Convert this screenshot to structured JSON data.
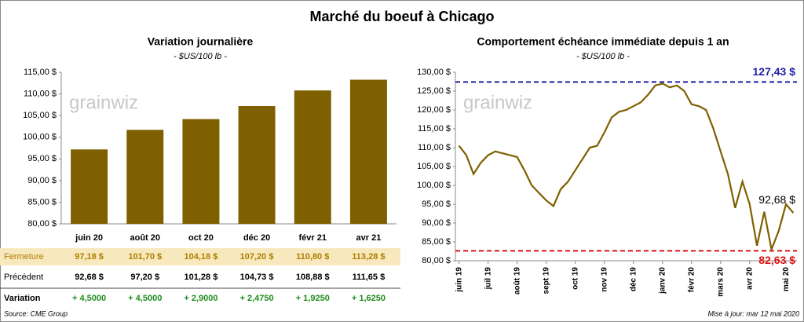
{
  "title": "Marché du boeuf à Chicago",
  "watermark": "grainwiz",
  "chart_data": [
    {
      "type": "bar",
      "title": "Variation journalière",
      "subtitle": "- $US/100 lb -",
      "categories": [
        "juin 20",
        "août 20",
        "oct 20",
        "déc 20",
        "févr 21",
        "avr 21"
      ],
      "values": [
        97.18,
        101.7,
        104.18,
        107.2,
        110.8,
        113.28
      ],
      "color": "#7f6000",
      "ylim": [
        80,
        115
      ],
      "yticks": [
        {
          "value": 80,
          "label": "80,00 $"
        },
        {
          "value": 85,
          "label": "85,00 $"
        },
        {
          "value": 90,
          "label": "90,00 $"
        },
        {
          "value": 95,
          "label": "95,00 $"
        },
        {
          "value": 100,
          "label": "100,00 $"
        },
        {
          "value": 105,
          "label": "105,00 $"
        },
        {
          "value": 110,
          "label": "110,00 $"
        },
        {
          "value": 115,
          "label": "115,00 $"
        }
      ]
    },
    {
      "type": "line",
      "title": "Comportement échéance immédiate depuis 1 an",
      "subtitle": "- $US/100 lb -",
      "categories": [
        "juin 19",
        null,
        null,
        null,
        "juil 19",
        null,
        null,
        null,
        "août 19",
        null,
        null,
        null,
        "sept 19",
        null,
        null,
        null,
        "oct 19",
        null,
        null,
        null,
        "nov 19",
        null,
        null,
        null,
        "déc 19",
        null,
        null,
        null,
        "janv 20",
        null,
        null,
        null,
        "févr 20",
        null,
        null,
        null,
        "mars 20",
        null,
        null,
        null,
        "avr 20",
        null,
        null,
        null,
        null,
        "mai 20",
        null
      ],
      "values": [
        110.5,
        108,
        103,
        106,
        108,
        109,
        108.5,
        108,
        107.5,
        104,
        100,
        98,
        96,
        94.5,
        99,
        101,
        104,
        107,
        110,
        110.5,
        114,
        118,
        119.5,
        120,
        121,
        122,
        124,
        126.5,
        127,
        126,
        126.5,
        125,
        121.5,
        121,
        120,
        115,
        109,
        103,
        94,
        101,
        95,
        84,
        93,
        83,
        88,
        95,
        92.68
      ],
      "color": "#7f6000",
      "last_value_label": "92,68 $",
      "hlines": [
        {
          "value": 127.43,
          "label": "127,43 $",
          "color": "#1f1fa8"
        },
        {
          "value": 82.63,
          "label": "82,63 $",
          "color": "#e01010"
        }
      ],
      "ylim": [
        80,
        130
      ],
      "yticks": [
        {
          "value": 80,
          "label": "80,00 $"
        },
        {
          "value": 85,
          "label": "85,00 $"
        },
        {
          "value": 90,
          "label": "90,00 $"
        },
        {
          "value": 95,
          "label": "95,00 $"
        },
        {
          "value": 100,
          "label": "100,00 $"
        },
        {
          "value": 105,
          "label": "105,00 $"
        },
        {
          "value": 110,
          "label": "110,00 $"
        },
        {
          "value": 115,
          "label": "115,00 $"
        },
        {
          "value": 120,
          "label": "120,00 $"
        },
        {
          "value": 125,
          "label": "125,00 $"
        },
        {
          "value": 130,
          "label": "130,00 $"
        }
      ]
    }
  ],
  "table": {
    "rows": [
      [
        "Fermeture",
        "97,18 $",
        "101,70 $",
        "104,18 $",
        "107,20 $",
        "110,80 $",
        "113,28 $"
      ],
      [
        "Précédent",
        "92,68 $",
        "97,20 $",
        "101,28 $",
        "104,73 $",
        "108,88 $",
        "111,65 $"
      ],
      [
        "Variation",
        "+ 4,5000",
        "+ 4,5000",
        "+ 2,9000",
        "+ 2,4750",
        "+ 1,9250",
        "+ 1,6250"
      ]
    ]
  },
  "source": "Source: CME Group",
  "updated": "Mise à jour: mar 12 mai 2020"
}
